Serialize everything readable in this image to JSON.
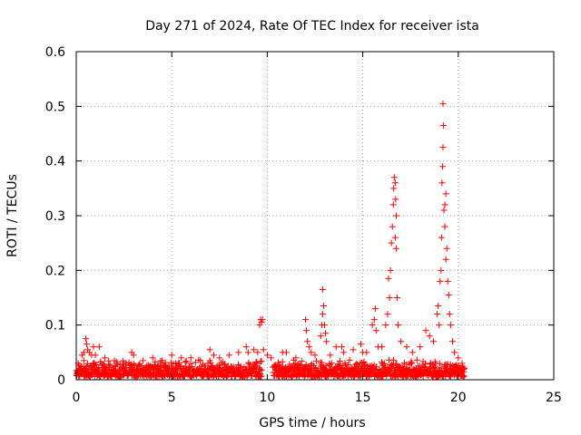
{
  "chart_data": {
    "type": "scatter",
    "title": "Day 271 of 2024, Rate Of TEC Index for receiver ista",
    "xlabel": "GPS time / hours",
    "ylabel": "ROTI / TECUs",
    "xlim": [
      0,
      25
    ],
    "ylim": [
      0,
      0.6
    ],
    "xticks": [
      "0",
      "5",
      "10",
      "15",
      "20",
      "25"
    ],
    "yticks": [
      "0",
      "0.1",
      "0.2",
      "0.3",
      "0.4",
      "0.5",
      "0.6"
    ],
    "grid": true,
    "marker": "+",
    "color": "#ff0000",
    "baseline": {
      "segments": [
        [
          0,
          9.7
        ],
        [
          10.3,
          20.3
        ]
      ],
      "min": 0.005,
      "max": 0.03
    },
    "points": [
      [
        0.1,
        0.03
      ],
      [
        0.3,
        0.045
      ],
      [
        0.4,
        0.05
      ],
      [
        0.5,
        0.075
      ],
      [
        0.55,
        0.065
      ],
      [
        0.6,
        0.055
      ],
      [
        0.7,
        0.05
      ],
      [
        0.8,
        0.045
      ],
      [
        0.9,
        0.06
      ],
      [
        1.0,
        0.045
      ],
      [
        1.2,
        0.06
      ],
      [
        1.5,
        0.04
      ],
      [
        2.0,
        0.035
      ],
      [
        2.5,
        0.03
      ],
      [
        2.9,
        0.05
      ],
      [
        3.0,
        0.045
      ],
      [
        3.5,
        0.035
      ],
      [
        4.0,
        0.04
      ],
      [
        4.5,
        0.035
      ],
      [
        5.0,
        0.045
      ],
      [
        5.5,
        0.04
      ],
      [
        6.0,
        0.04
      ],
      [
        6.5,
        0.035
      ],
      [
        7.0,
        0.055
      ],
      [
        7.2,
        0.045
      ],
      [
        7.5,
        0.04
      ],
      [
        8.0,
        0.045
      ],
      [
        8.5,
        0.05
      ],
      [
        8.9,
        0.06
      ],
      [
        9.0,
        0.05
      ],
      [
        9.3,
        0.055
      ],
      [
        9.5,
        0.05
      ],
      [
        9.6,
        0.1
      ],
      [
        9.65,
        0.11
      ],
      [
        9.7,
        0.105
      ],
      [
        9.75,
        0.11
      ],
      [
        9.8,
        0.055
      ],
      [
        10.0,
        0.045
      ],
      [
        10.2,
        0.04
      ],
      [
        10.8,
        0.05
      ],
      [
        11.0,
        0.05
      ],
      [
        11.5,
        0.04
      ],
      [
        12.0,
        0.11
      ],
      [
        12.05,
        0.09
      ],
      [
        12.1,
        0.07
      ],
      [
        12.2,
        0.06
      ],
      [
        12.3,
        0.05
      ],
      [
        12.5,
        0.045
      ],
      [
        12.8,
        0.08
      ],
      [
        12.85,
        0.1
      ],
      [
        12.9,
        0.12
      ],
      [
        12.95,
        0.135
      ],
      [
        13.0,
        0.1
      ],
      [
        12.9,
        0.165
      ],
      [
        13.05,
        0.085
      ],
      [
        13.1,
        0.07
      ],
      [
        13.3,
        0.045
      ],
      [
        13.6,
        0.06
      ],
      [
        13.9,
        0.06
      ],
      [
        14.0,
        0.05
      ],
      [
        14.5,
        0.055
      ],
      [
        14.9,
        0.065
      ],
      [
        15.0,
        0.05
      ],
      [
        15.2,
        0.05
      ],
      [
        15.5,
        0.1
      ],
      [
        15.6,
        0.11
      ],
      [
        15.65,
        0.13
      ],
      [
        15.7,
        0.09
      ],
      [
        15.8,
        0.06
      ],
      [
        16.0,
        0.06
      ],
      [
        16.2,
        0.1
      ],
      [
        16.3,
        0.12
      ],
      [
        16.35,
        0.185
      ],
      [
        16.4,
        0.15
      ],
      [
        16.45,
        0.2
      ],
      [
        16.5,
        0.25
      ],
      [
        16.55,
        0.28
      ],
      [
        16.6,
        0.32
      ],
      [
        16.62,
        0.35
      ],
      [
        16.65,
        0.37
      ],
      [
        16.7,
        0.36
      ],
      [
        16.72,
        0.33
      ],
      [
        16.75,
        0.3
      ],
      [
        16.7,
        0.26
      ],
      [
        16.75,
        0.24
      ],
      [
        16.8,
        0.15
      ],
      [
        16.85,
        0.1
      ],
      [
        17.0,
        0.07
      ],
      [
        17.3,
        0.06
      ],
      [
        17.6,
        0.05
      ],
      [
        18.0,
        0.06
      ],
      [
        18.3,
        0.09
      ],
      [
        18.5,
        0.08
      ],
      [
        18.7,
        0.07
      ],
      [
        18.9,
        0.12
      ],
      [
        18.95,
        0.135
      ],
      [
        19.0,
        0.1
      ],
      [
        19.05,
        0.18
      ],
      [
        19.1,
        0.2
      ],
      [
        19.12,
        0.26
      ],
      [
        19.15,
        0.36
      ],
      [
        19.18,
        0.39
      ],
      [
        19.2,
        0.425
      ],
      [
        19.22,
        0.465
      ],
      [
        19.2,
        0.505
      ],
      [
        19.25,
        0.31
      ],
      [
        19.3,
        0.32
      ],
      [
        19.35,
        0.34
      ],
      [
        19.3,
        0.28
      ],
      [
        19.4,
        0.24
      ],
      [
        19.35,
        0.22
      ],
      [
        19.45,
        0.18
      ],
      [
        19.5,
        0.155
      ],
      [
        19.55,
        0.12
      ],
      [
        19.6,
        0.1
      ],
      [
        19.7,
        0.07
      ],
      [
        19.8,
        0.05
      ],
      [
        20.0,
        0.04
      ],
      [
        20.2,
        0.03
      ]
    ]
  }
}
